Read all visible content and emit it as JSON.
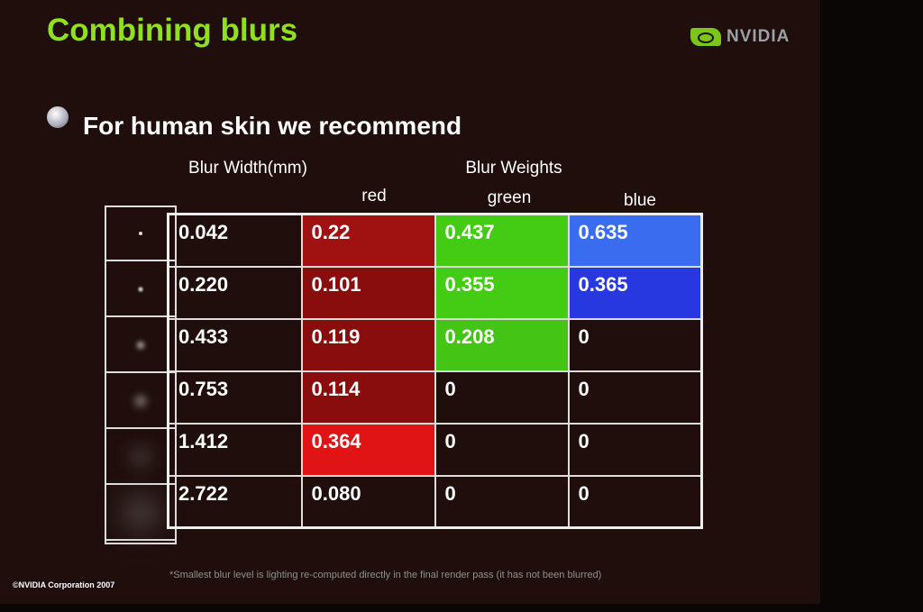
{
  "title": "Combining blurs",
  "logo": "NVIDIA",
  "bullet": "For human skin we recommend",
  "headers": {
    "blur_width": "Blur Width(mm)",
    "blur_weights": "Blur Weights",
    "red": "red",
    "green": "green",
    "blue": "blue"
  },
  "rows": [
    {
      "width": "0.042",
      "red": "0.22",
      "green": "0.437",
      "blue": "0.635"
    },
    {
      "width": "0.220",
      "red": "0.101",
      "green": "0.355",
      "blue": "0.365"
    },
    {
      "width": "0.433",
      "red": "0.119",
      "green": "0.208",
      "blue": "0"
    },
    {
      "width": "0.753",
      "red": "0.114",
      "green": "0",
      "blue": "0"
    },
    {
      "width": "1.412",
      "red": "0.364",
      "green": "0",
      "blue": "0"
    },
    {
      "width": "2.722",
      "red": "0.080",
      "green": "0",
      "blue": "0"
    }
  ],
  "cell_colors": {
    "red": [
      "#a01212",
      "#8a0d0d",
      "#8a0d0d",
      "#8a0d0d",
      "#e01414",
      ""
    ],
    "green": [
      "#44cc14",
      "#44cc14",
      "#44c414",
      "",
      "",
      ""
    ],
    "blue": [
      "#3a6cf0",
      "#2838e0",
      "",
      "",
      "",
      ""
    ]
  },
  "footnote": "*Smallest blur level is lighting re-computed directly in the final render pass (it has not been blurred)",
  "copyright": "©NVIDIA Corporation 2007"
}
